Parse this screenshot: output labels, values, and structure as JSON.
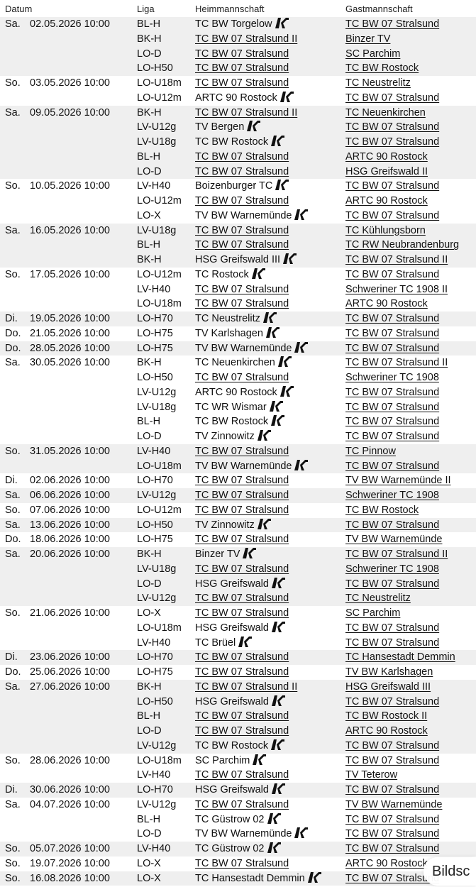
{
  "header": {
    "date": "Datum",
    "liga": "Liga",
    "home": "Heimmannschaft",
    "guest": "Gastmannschaft"
  },
  "logo_icon": "club-logo-icon",
  "overlay": {
    "label": "Bildsc"
  },
  "rows": [
    {
      "day": "Sa.",
      "date": "02.05.2026 10:00",
      "liga": "BL-H",
      "home": "TC BW Torgelow",
      "home_logo": true,
      "guest": "TC BW 07 Stralsund"
    },
    {
      "day": "",
      "date": "",
      "liga": "BK-H",
      "home": "TC BW 07 Stralsund II",
      "home_logo": false,
      "guest": "Binzer TV"
    },
    {
      "day": "",
      "date": "",
      "liga": "LO-D",
      "home": "TC BW 07 Stralsund",
      "home_logo": false,
      "guest": "SC Parchim"
    },
    {
      "day": "",
      "date": "",
      "liga": "LO-H50",
      "home": "TC BW 07 Stralsund",
      "home_logo": false,
      "guest": "TC BW Rostock"
    },
    {
      "day": "So.",
      "date": "03.05.2026 10:00",
      "liga": "LO-U18m",
      "home": "TC BW 07 Stralsund",
      "home_logo": false,
      "guest": "TC Neustrelitz"
    },
    {
      "day": "",
      "date": "",
      "liga": "LO-U12m",
      "home": "ARTC 90 Rostock",
      "home_logo": true,
      "guest": "TC BW 07 Stralsund"
    },
    {
      "day": "Sa.",
      "date": "09.05.2026 10:00",
      "liga": "BK-H",
      "home": "TC BW 07 Stralsund II",
      "home_logo": false,
      "guest": "TC Neuenkirchen"
    },
    {
      "day": "",
      "date": "",
      "liga": "LV-U12g",
      "home": "TV Bergen",
      "home_logo": true,
      "guest": "TC BW 07 Stralsund"
    },
    {
      "day": "",
      "date": "",
      "liga": "LV-U18g",
      "home": "TC BW Rostock",
      "home_logo": true,
      "guest": "TC BW 07 Stralsund"
    },
    {
      "day": "",
      "date": "",
      "liga": "BL-H",
      "home": "TC BW 07 Stralsund",
      "home_logo": false,
      "guest": "ARTC 90 Rostock"
    },
    {
      "day": "",
      "date": "",
      "liga": "LO-D",
      "home": "TC BW 07 Stralsund",
      "home_logo": false,
      "guest": "HSG Greifswald II"
    },
    {
      "day": "So.",
      "date": "10.05.2026 10:00",
      "liga": "LV-H40",
      "home": "Boizenburger TC",
      "home_logo": true,
      "guest": "TC BW 07 Stralsund"
    },
    {
      "day": "",
      "date": "",
      "liga": "LO-U12m",
      "home": "TC BW 07 Stralsund",
      "home_logo": false,
      "guest": "ARTC 90 Rostock"
    },
    {
      "day": "",
      "date": "",
      "liga": "LO-X",
      "home": "TV BW Warnemünde",
      "home_logo": true,
      "guest": "TC BW 07 Stralsund"
    },
    {
      "day": "Sa.",
      "date": "16.05.2026 10:00",
      "liga": "LV-U18g",
      "home": "TC BW 07 Stralsund",
      "home_logo": false,
      "guest": "TC Kühlungsborn"
    },
    {
      "day": "",
      "date": "",
      "liga": "BL-H",
      "home": "TC BW 07 Stralsund",
      "home_logo": false,
      "guest": "TC RW Neubrandenburg"
    },
    {
      "day": "",
      "date": "",
      "liga": "BK-H",
      "home": "HSG Greifswald III",
      "home_logo": true,
      "guest": "TC BW 07 Stralsund II"
    },
    {
      "day": "So.",
      "date": "17.05.2026 10:00",
      "liga": "LO-U12m",
      "home": "TC Rostock",
      "home_logo": true,
      "guest": "TC BW 07 Stralsund"
    },
    {
      "day": "",
      "date": "",
      "liga": "LV-H40",
      "home": "TC BW 07 Stralsund",
      "home_logo": false,
      "guest": "Schweriner TC 1908 II"
    },
    {
      "day": "",
      "date": "",
      "liga": "LO-U18m",
      "home": "TC BW 07 Stralsund",
      "home_logo": false,
      "guest": "ARTC 90 Rostock"
    },
    {
      "day": "Di.",
      "date": "19.05.2026 10:00",
      "liga": "LO-H70",
      "home": "TC Neustrelitz",
      "home_logo": true,
      "guest": "TC BW 07 Stralsund"
    },
    {
      "day": "Do.",
      "date": "21.05.2026 10:00",
      "liga": "LO-H75",
      "home": "TV Karlshagen",
      "home_logo": true,
      "guest": "TC BW 07 Stralsund"
    },
    {
      "day": "Do.",
      "date": "28.05.2026 10:00",
      "liga": "LO-H75",
      "home": "TV BW Warnemünde",
      "home_logo": true,
      "guest": "TC BW 07 Stralsund"
    },
    {
      "day": "Sa.",
      "date": "30.05.2026 10:00",
      "liga": "BK-H",
      "home": "TC Neuenkirchen",
      "home_logo": true,
      "guest": "TC BW 07 Stralsund II"
    },
    {
      "day": "",
      "date": "",
      "liga": "LO-H50",
      "home": "TC BW 07 Stralsund",
      "home_logo": false,
      "guest": "Schweriner TC 1908"
    },
    {
      "day": "",
      "date": "",
      "liga": "LV-U12g",
      "home": "ARTC 90 Rostock",
      "home_logo": true,
      "guest": "TC BW 07 Stralsund"
    },
    {
      "day": "",
      "date": "",
      "liga": "LV-U18g",
      "home": "TC WR Wismar",
      "home_logo": true,
      "guest": "TC BW 07 Stralsund"
    },
    {
      "day": "",
      "date": "",
      "liga": "BL-H",
      "home": "TC BW Rostock",
      "home_logo": true,
      "guest": "TC BW 07 Stralsund"
    },
    {
      "day": "",
      "date": "",
      "liga": "LO-D",
      "home": "TV Zinnowitz",
      "home_logo": true,
      "guest": "TC BW 07 Stralsund"
    },
    {
      "day": "So.",
      "date": "31.05.2026 10:00",
      "liga": "LV-H40",
      "home": "TC BW 07 Stralsund",
      "home_logo": false,
      "guest": "TC Pinnow"
    },
    {
      "day": "",
      "date": "",
      "liga": "LO-U18m",
      "home": "TV BW Warnemünde",
      "home_logo": true,
      "guest": "TC BW 07 Stralsund"
    },
    {
      "day": "Di.",
      "date": "02.06.2026 10:00",
      "liga": "LO-H70",
      "home": "TC BW 07 Stralsund",
      "home_logo": false,
      "guest": "TV BW Warnemünde II"
    },
    {
      "day": "Sa.",
      "date": "06.06.2026 10:00",
      "liga": "LV-U12g",
      "home": "TC BW 07 Stralsund",
      "home_logo": false,
      "guest": "Schweriner TC 1908"
    },
    {
      "day": "So.",
      "date": "07.06.2026 10:00",
      "liga": "LO-U12m",
      "home": "TC BW 07 Stralsund",
      "home_logo": false,
      "guest": "TC BW Rostock"
    },
    {
      "day": "Sa.",
      "date": "13.06.2026 10:00",
      "liga": "LO-H50",
      "home": "TV Zinnowitz",
      "home_logo": true,
      "guest": "TC BW 07 Stralsund"
    },
    {
      "day": "Do.",
      "date": "18.06.2026 10:00",
      "liga": "LO-H75",
      "home": "TC BW 07 Stralsund",
      "home_logo": false,
      "guest": "TV BW Warnemünde"
    },
    {
      "day": "Sa.",
      "date": "20.06.2026 10:00",
      "liga": "BK-H",
      "home": "Binzer TV",
      "home_logo": true,
      "guest": "TC BW 07 Stralsund II"
    },
    {
      "day": "",
      "date": "",
      "liga": "LV-U18g",
      "home": "TC BW 07 Stralsund",
      "home_logo": false,
      "guest": "Schweriner TC 1908"
    },
    {
      "day": "",
      "date": "",
      "liga": "LO-D",
      "home": "HSG Greifswald",
      "home_logo": true,
      "guest": "TC BW 07 Stralsund"
    },
    {
      "day": "",
      "date": "",
      "liga": "LV-U12g",
      "home": "TC BW 07 Stralsund",
      "home_logo": false,
      "guest": "TC Neustrelitz"
    },
    {
      "day": "So.",
      "date": "21.06.2026 10:00",
      "liga": "LO-X",
      "home": "TC BW 07 Stralsund",
      "home_logo": false,
      "guest": "SC Parchim"
    },
    {
      "day": "",
      "date": "",
      "liga": "LO-U18m",
      "home": "HSG Greifswald",
      "home_logo": true,
      "guest": "TC BW 07 Stralsund"
    },
    {
      "day": "",
      "date": "",
      "liga": "LV-H40",
      "home": "TC Brüel",
      "home_logo": true,
      "guest": "TC BW 07 Stralsund"
    },
    {
      "day": "Di.",
      "date": "23.06.2026 10:00",
      "liga": "LO-H70",
      "home": "TC BW 07 Stralsund",
      "home_logo": false,
      "guest": "TC Hansestadt Demmin"
    },
    {
      "day": "Do.",
      "date": "25.06.2026 10:00",
      "liga": "LO-H75",
      "home": "TC BW 07 Stralsund",
      "home_logo": false,
      "guest": "TV BW Karlshagen"
    },
    {
      "day": "Sa.",
      "date": "27.06.2026 10:00",
      "liga": "BK-H",
      "home": "TC BW 07 Stralsund II",
      "home_logo": false,
      "guest": "HSG Greifswald III"
    },
    {
      "day": "",
      "date": "",
      "liga": "LO-H50",
      "home": "HSG Greifswald",
      "home_logo": true,
      "guest": "TC BW 07 Stralsund"
    },
    {
      "day": "",
      "date": "",
      "liga": "BL-H",
      "home": "TC BW 07 Stralsund",
      "home_logo": false,
      "guest": "TC BW Rostock II"
    },
    {
      "day": "",
      "date": "",
      "liga": "LO-D",
      "home": "TC BW 07 Stralsund",
      "home_logo": false,
      "guest": "ARTC 90 Rostock"
    },
    {
      "day": "",
      "date": "",
      "liga": "LV-U12g",
      "home": "TC BW Rostock",
      "home_logo": true,
      "guest": "TC BW 07 Stralsund"
    },
    {
      "day": "So.",
      "date": "28.06.2026 10:00",
      "liga": "LO-U18m",
      "home": "SC Parchim",
      "home_logo": true,
      "guest": "TC BW 07 Stralsund"
    },
    {
      "day": "",
      "date": "",
      "liga": "LV-H40",
      "home": "TC BW 07 Stralsund",
      "home_logo": false,
      "guest": "TV Teterow"
    },
    {
      "day": "Di.",
      "date": "30.06.2026 10:00",
      "liga": "LO-H70",
      "home": "HSG Greifswald",
      "home_logo": true,
      "guest": "TC BW 07 Stralsund"
    },
    {
      "day": "Sa.",
      "date": "04.07.2026 10:00",
      "liga": "LV-U12g",
      "home": "TC BW 07 Stralsund",
      "home_logo": false,
      "guest": "TV BW Warnemünde"
    },
    {
      "day": "",
      "date": "",
      "liga": "BL-H",
      "home": "TC Güstrow 02",
      "home_logo": true,
      "guest": "TC BW 07 Stralsund"
    },
    {
      "day": "",
      "date": "",
      "liga": "LO-D",
      "home": "TV BW Warnemünde",
      "home_logo": true,
      "guest": "TC BW 07 Stralsund"
    },
    {
      "day": "So.",
      "date": "05.07.2026 10:00",
      "liga": "LV-H40",
      "home": "TC Güstrow 02",
      "home_logo": true,
      "guest": "TC BW 07 Stralsund"
    },
    {
      "day": "So.",
      "date": "19.07.2026 10:00",
      "liga": "LO-X",
      "home": "TC BW 07 Stralsund",
      "home_logo": false,
      "guest": "ARTC 90 Rostock"
    },
    {
      "day": "So.",
      "date": "16.08.2026 10:00",
      "liga": "LO-X",
      "home": "TC Hansestadt Demmin",
      "home_logo": true,
      "guest": "TC BW 07 Stralsund"
    }
  ]
}
